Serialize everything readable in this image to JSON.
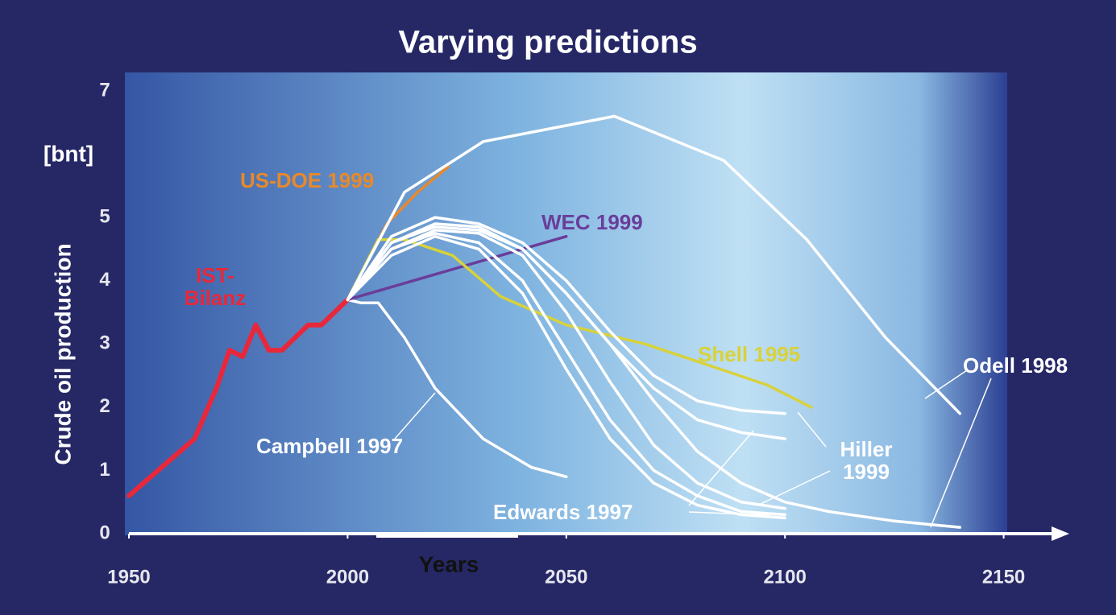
{
  "chart_data": {
    "type": "line",
    "title": "Varying predictions",
    "x_label": "Years",
    "y_label": "Crude oil production",
    "y_unit": "[bnt]",
    "xlim": [
      1950,
      2165
    ],
    "ylim": [
      0,
      7
    ],
    "xticks": [
      1950,
      2000,
      2050,
      2100,
      2150
    ],
    "yticks": [
      0,
      1,
      2,
      3,
      4,
      5,
      7
    ],
    "series": [
      {
        "name": "IST-Bilanz",
        "color": "#e8283a",
        "x": [
          1950,
          1955,
          1960,
          1965,
          1970,
          1973,
          1976,
          1979,
          1982,
          1985,
          1988,
          1991,
          1994,
          1997,
          2000
        ],
        "values": [
          0.6,
          0.9,
          1.2,
          1.5,
          2.3,
          2.9,
          2.8,
          3.3,
          2.9,
          2.9,
          3.1,
          3.3,
          3.3,
          3.5,
          3.7
        ]
      },
      {
        "name": "Campbell 1997",
        "color": "#ffffff",
        "x": [
          2000,
          2003,
          2007,
          2013,
          2020,
          2031,
          2042,
          2050
        ],
        "values": [
          3.7,
          3.65,
          3.65,
          3.1,
          2.3,
          1.5,
          1.05,
          0.9
        ]
      },
      {
        "name": "US-DOE 1999",
        "color": "#e8892a",
        "x": [
          2000,
          2009,
          2016,
          2023
        ],
        "values": [
          3.7,
          4.9,
          5.4,
          5.8
        ]
      },
      {
        "name": "WEC 1999",
        "color": "#6a3d9a",
        "x": [
          2000,
          2025,
          2050
        ],
        "values": [
          3.7,
          4.2,
          4.7
        ]
      },
      {
        "name": "Shell 1995",
        "color": "#d8d23a",
        "x": [
          2000,
          2007,
          2013,
          2024,
          2035,
          2050,
          2068,
          2081,
          2096,
          2106
        ],
        "values": [
          3.7,
          4.65,
          4.65,
          4.4,
          3.75,
          3.3,
          3.0,
          2.7,
          2.35,
          2.0
        ]
      },
      {
        "name": "Odell 1998",
        "color": "#ffffff",
        "x": [
          2000,
          2013,
          2031,
          2061,
          2086,
          2105,
          2123,
          2140
        ],
        "values": [
          3.7,
          5.4,
          6.2,
          6.6,
          5.9,
          4.65,
          3.1,
          1.9
        ]
      },
      {
        "color": "#ffffff",
        "x": [
          2000,
          2010,
          2020,
          2030,
          2040,
          2050,
          2060,
          2070,
          2080,
          2090,
          2100,
          2110,
          2125,
          2140
        ],
        "values": [
          3.7,
          4.6,
          4.9,
          4.85,
          4.5,
          3.8,
          3.0,
          2.1,
          1.3,
          0.8,
          0.5,
          0.35,
          0.2,
          0.1
        ]
      },
      {
        "name": "Hiller 1999",
        "color": "#ffffff",
        "x": [
          2000,
          2010,
          2020,
          2030,
          2040,
          2050,
          2060,
          2070,
          2080,
          2090,
          2100
        ],
        "values": [
          3.7,
          4.7,
          5.0,
          4.9,
          4.6,
          4.0,
          3.2,
          2.5,
          2.1,
          1.95,
          1.9
        ]
      },
      {
        "color": "#ffffff",
        "x": [
          2000,
          2010,
          2020,
          2030,
          2040,
          2050,
          2060,
          2070,
          2080,
          2090,
          2100
        ],
        "values": [
          3.7,
          4.6,
          4.85,
          4.8,
          4.5,
          3.8,
          3.0,
          2.3,
          1.8,
          1.6,
          1.5
        ]
      },
      {
        "name": "Edwards 1997",
        "color": "#ffffff",
        "x": [
          2000,
          2010,
          2020,
          2030,
          2040,
          2050,
          2060,
          2070,
          2080,
          2090,
          2100
        ],
        "values": [
          3.7,
          4.5,
          4.8,
          4.75,
          4.4,
          3.5,
          2.4,
          1.4,
          0.8,
          0.5,
          0.4
        ]
      },
      {
        "color": "#ffffff",
        "x": [
          2000,
          2010,
          2020,
          2030,
          2040,
          2050,
          2060,
          2070,
          2080,
          2090,
          2100
        ],
        "values": [
          3.7,
          4.5,
          4.75,
          4.6,
          4.0,
          2.9,
          1.8,
          1.0,
          0.6,
          0.35,
          0.3
        ]
      },
      {
        "color": "#ffffff",
        "x": [
          2000,
          2010,
          2020,
          2030,
          2040,
          2050,
          2060,
          2070,
          2080,
          2090,
          2100
        ],
        "values": [
          3.7,
          4.4,
          4.7,
          4.5,
          3.8,
          2.6,
          1.5,
          0.8,
          0.45,
          0.3,
          0.25
        ]
      }
    ]
  }
}
